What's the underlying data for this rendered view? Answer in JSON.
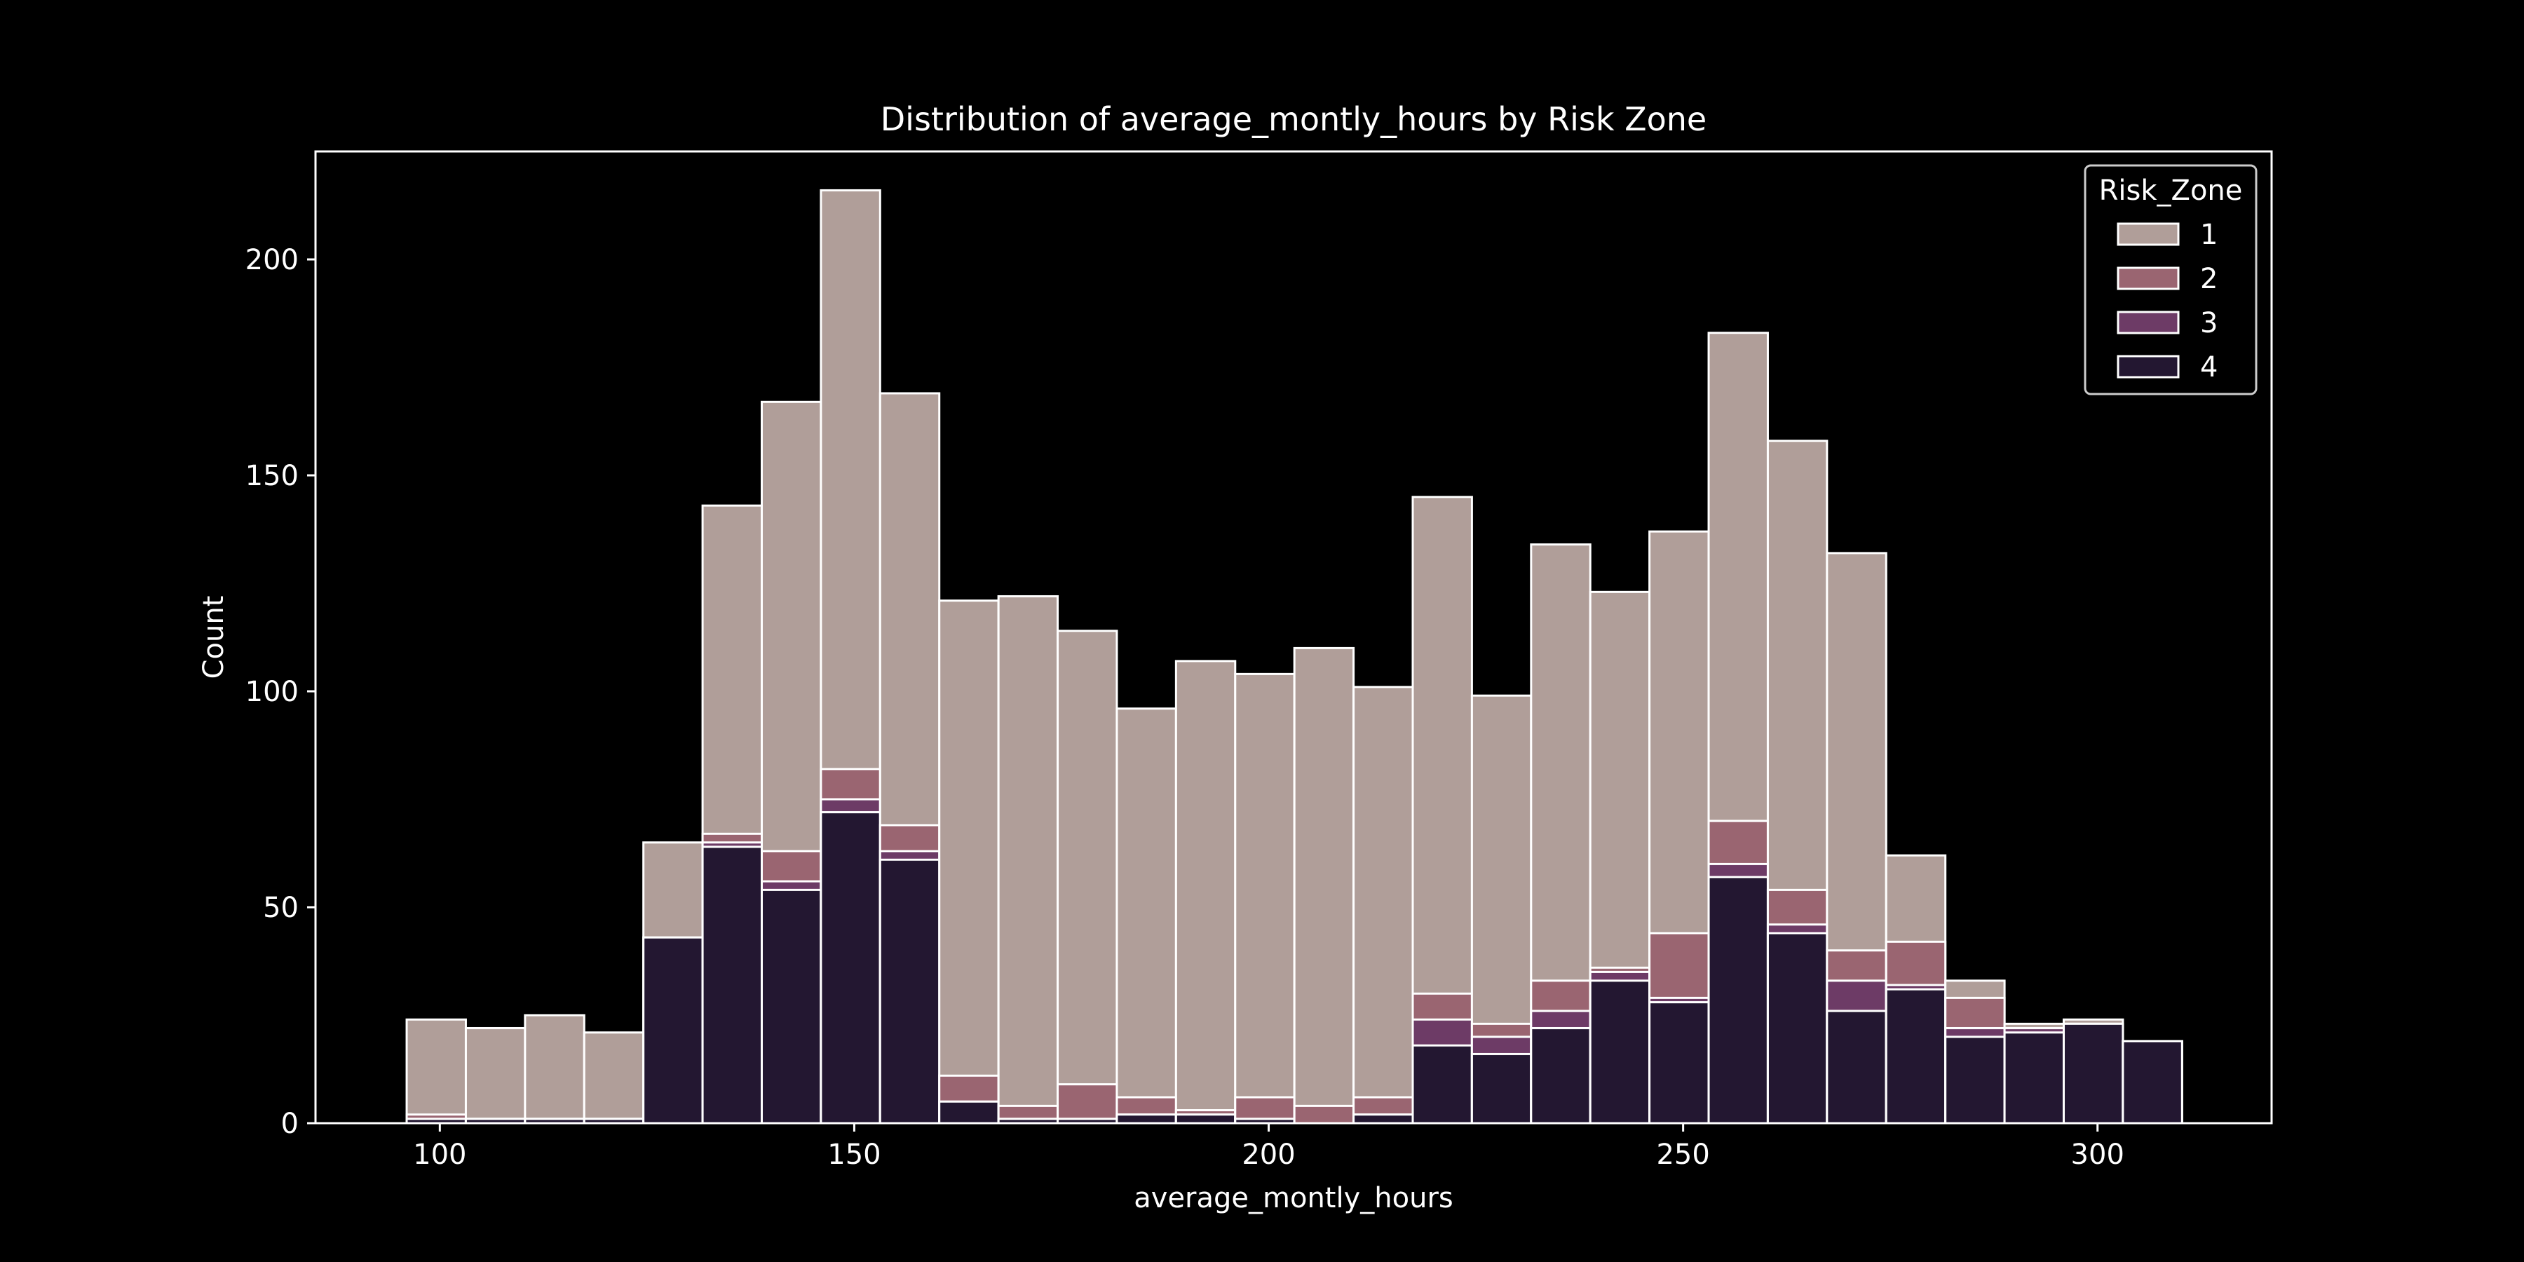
{
  "chart_data": {
    "type": "bar",
    "subtype": "stacked-overlaid-histogram",
    "title": "Distribution of average_montly_hours by Risk Zone",
    "xlabel": "average_montly_hours",
    "ylabel": "Count",
    "xlim": [
      85,
      321
    ],
    "ylim": [
      0,
      225
    ],
    "xticks": [
      100,
      150,
      200,
      250,
      300
    ],
    "yticks": [
      0,
      50,
      100,
      150,
      200
    ],
    "grid": false,
    "legend": {
      "title": "Risk_Zone",
      "placement": "top-right"
    },
    "bin_edges": [
      96,
      103.14,
      110.28,
      117.42,
      124.56,
      131.7,
      138.84,
      145.98,
      153.12,
      160.26,
      167.4,
      174.54,
      181.68,
      188.82,
      195.96,
      203.1,
      210.24,
      217.38,
      224.52,
      231.66,
      238.8,
      245.94,
      253.08,
      260.22,
      267.36,
      274.5,
      281.64,
      288.78,
      295.92,
      303.06,
      310.2
    ],
    "series": [
      {
        "name": "1",
        "color": "#b09e99",
        "values": [
          22,
          21,
          24,
          20,
          22,
          76,
          104,
          134,
          100,
          110,
          118,
          105,
          90,
          104,
          98,
          106,
          95,
          115,
          76,
          101,
          87,
          93,
          113,
          104,
          92,
          20,
          4,
          1,
          1,
          0
        ]
      },
      {
        "name": "2",
        "color": "#9a6571",
        "values": [
          1,
          0,
          0,
          0,
          0,
          2,
          7,
          7,
          6,
          6,
          3,
          8,
          4,
          1,
          5,
          4,
          4,
          6,
          3,
          7,
          1,
          15,
          10,
          8,
          7,
          10,
          7,
          0,
          0,
          0
        ]
      },
      {
        "name": "3",
        "color": "#6d3b66",
        "values": [
          0,
          0,
          0,
          0,
          0,
          1,
          2,
          3,
          2,
          0,
          0,
          0,
          0,
          0,
          0,
          0,
          0,
          6,
          4,
          4,
          2,
          1,
          3,
          2,
          7,
          1,
          2,
          1,
          0,
          0
        ]
      },
      {
        "name": "4",
        "color": "#231731",
        "values": [
          1,
          1,
          1,
          1,
          43,
          64,
          54,
          72,
          61,
          5,
          1,
          1,
          2,
          2,
          1,
          0,
          2,
          18,
          16,
          22,
          33,
          28,
          57,
          44,
          26,
          31,
          20,
          21,
          23,
          19
        ]
      }
    ]
  }
}
